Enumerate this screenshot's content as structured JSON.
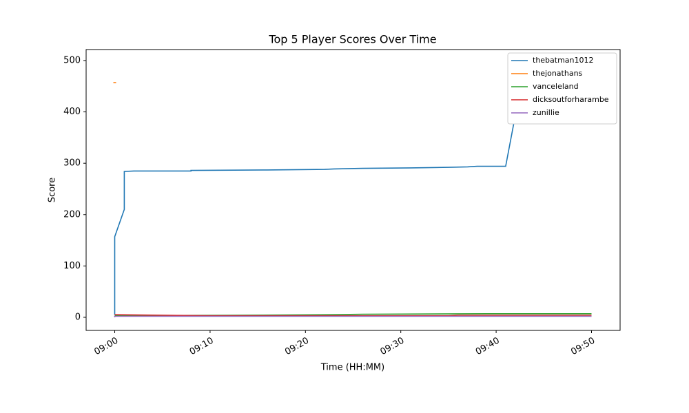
{
  "chart_data": {
    "type": "line",
    "title": "Top 5 Player Scores Over Time",
    "x_label": "Time (HH:MM)",
    "y_label": "Score",
    "xlim": [
      "08:57",
      "09:53"
    ],
    "xticks": [
      "09:00",
      "09:10",
      "09:20",
      "09:30",
      "09:40",
      "09:50"
    ],
    "ylim": [
      -25.5,
      521.4
    ],
    "yticks": [
      0,
      100,
      200,
      300,
      400,
      500
    ],
    "grid": false,
    "legend": "upper-right",
    "series": [
      {
        "name": "thebatman1012",
        "color": "#1f77b4",
        "x": [
          "09:00",
          "09:00",
          "09:01",
          "09:01",
          "09:02",
          "09:08",
          "09:08",
          "09:16",
          "09:22",
          "09:23",
          "09:26",
          "09:31",
          "09:35",
          "09:37",
          "09:38",
          "09:41",
          "09:43"
        ],
        "values": [
          5,
          157,
          210,
          284,
          285,
          285,
          286,
          287,
          288,
          289,
          290,
          291,
          292,
          293,
          294,
          294,
          490
        ]
      },
      {
        "name": "thejonathans",
        "color": "#ff7f0e",
        "x": [
          "09:00",
          "09:00"
        ],
        "values": [
          457,
          457
        ]
      },
      {
        "name": "vanceleland",
        "color": "#2ca02c",
        "x": [
          "09:00",
          "09:12",
          "09:23",
          "09:26",
          "09:39",
          "09:50"
        ],
        "values": [
          3,
          4,
          5,
          6,
          7,
          7
        ]
      },
      {
        "name": "dicksoutforharambe",
        "color": "#d62728",
        "x": [
          "09:00",
          "09:10",
          "09:35",
          "09:36",
          "09:50"
        ],
        "values": [
          5,
          3,
          3,
          4,
          4
        ]
      },
      {
        "name": "zunillie",
        "color": "#9467bd",
        "x": [
          "09:00",
          "09:00",
          "09:50"
        ],
        "values": [
          0,
          2,
          2
        ]
      }
    ]
  }
}
